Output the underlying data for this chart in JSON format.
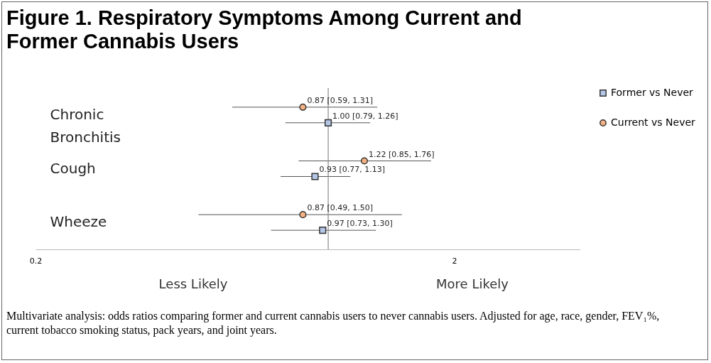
{
  "chart_data": {
    "type": "scatter",
    "orientation": "horizontal",
    "title": "Figure 1. Respiratory Symptoms Among Current and Former Cannabis Users",
    "categories": [
      "Chronic Bronchitis",
      "Cough",
      "Wheeze"
    ],
    "series": [
      {
        "name": "Former vs Never",
        "color": "#b4c7e7",
        "marker": "square",
        "values": [
          1.0,
          0.93,
          0.97
        ],
        "errors": [
          [
            0.79,
            1.26
          ],
          [
            0.77,
            1.13
          ],
          [
            0.73,
            1.3
          ]
        ],
        "value_labels": [
          "1.00 [0.79, 1.26]",
          "0.93 [0.77, 1.13]",
          "0.97 [0.73, 1.30]"
        ]
      },
      {
        "name": "Current vs Never",
        "color": "#f4b183",
        "marker": "circle",
        "values": [
          0.87,
          1.22,
          0.87
        ],
        "errors": [
          [
            0.59,
            1.31
          ],
          [
            0.85,
            1.76
          ],
          [
            0.49,
            1.5
          ]
        ],
        "value_labels": [
          "0.87 [0.59, 1.31]",
          "1.22 [0.85, 1.76]",
          "0.87 [0.49, 1.50]"
        ]
      }
    ],
    "xlim": [
      0.2,
      4
    ],
    "xticks": [
      0.2,
      2
    ],
    "log": "x",
    "grid": false,
    "legend": "right",
    "ref_lines": [
      {
        "axis": "x",
        "value": 1
      }
    ],
    "annotations": [
      "Less Likely",
      "More Likely",
      "Multivariate analysis: odds ratios comparing former and current cannabis users to never cannabis users. Adjusted for age, race, gender, FEV₁%, current tobacco smoking status, pack years, and joint years."
    ]
  }
}
